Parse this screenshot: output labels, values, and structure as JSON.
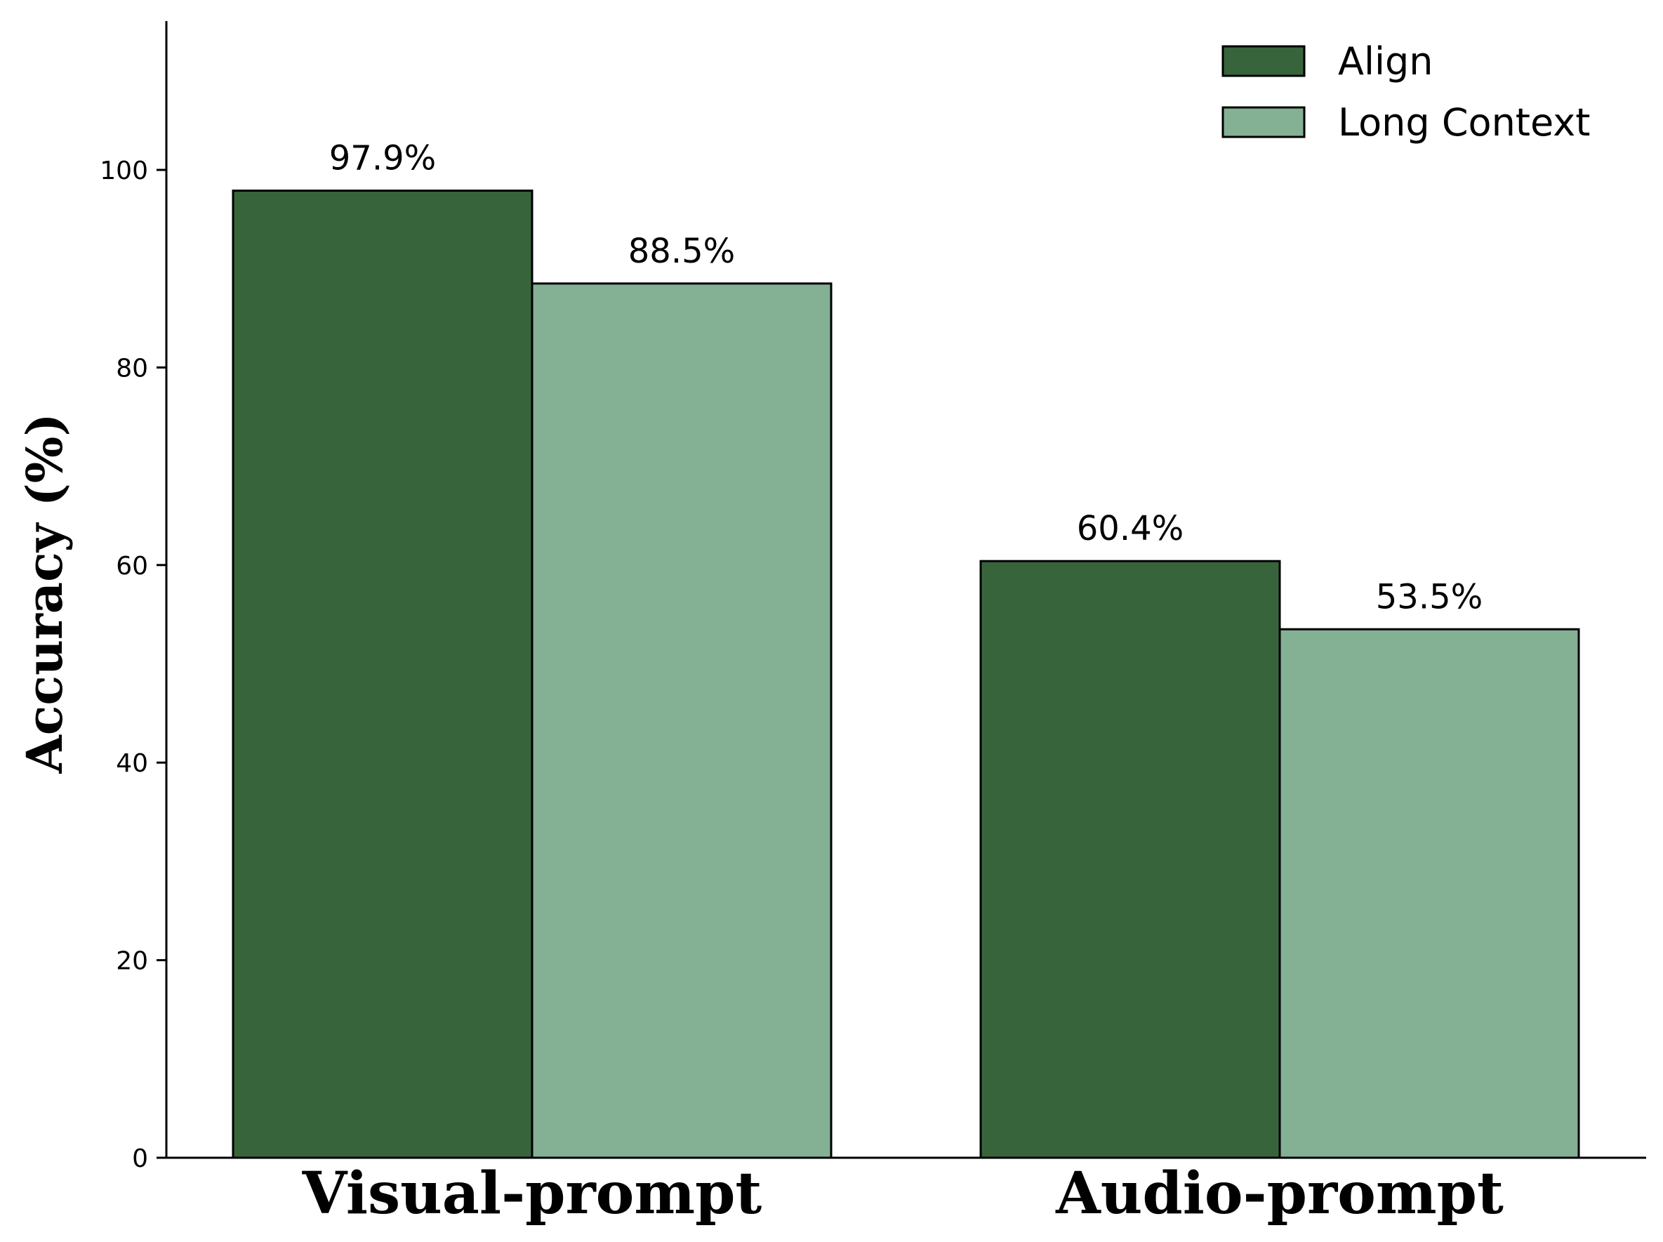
{
  "chart_data": {
    "type": "bar",
    "categories": [
      "Visual-prompt",
      "Audio-prompt"
    ],
    "series": [
      {
        "name": "Align",
        "values": [
          97.9,
          60.4
        ],
        "labels": [
          "97.9%",
          "60.4%"
        ],
        "color": "#38643c"
      },
      {
        "name": "Long Context",
        "values": [
          88.5,
          53.5
        ],
        "labels": [
          "88.5%",
          "53.5%"
        ],
        "color": "#84b094"
      }
    ],
    "ylabel": "Accuracy (%)",
    "xlabel": "",
    "ylim": [
      0,
      115
    ],
    "yticks": [
      0,
      20,
      40,
      60,
      80,
      100
    ],
    "grid": false,
    "legend_position": "top-right"
  }
}
